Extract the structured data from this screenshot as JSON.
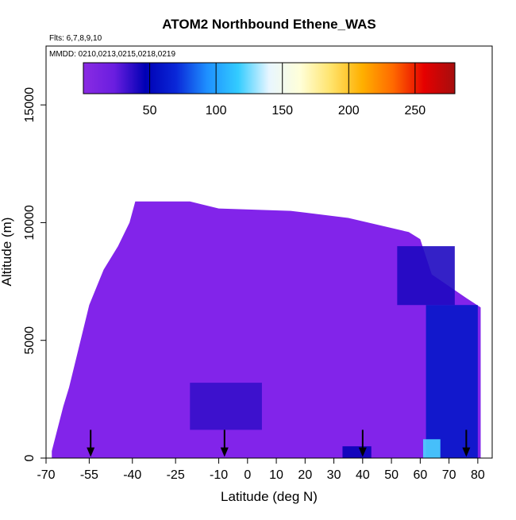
{
  "chart_data": {
    "type": "heatmap",
    "title": "ATOM2 Northbound Ethene_WAS",
    "flights_label": "Flts: 6,7,8,9,10",
    "dates_label": "MMDD: 0210,0213,0215,0218,0219",
    "xlabel": "Latitude (deg N)",
    "ylabel": "Altitude (m)",
    "xlim": [
      -70,
      85
    ],
    "ylim": [
      0,
      17500
    ],
    "xticks": [
      "-70",
      "-55",
      "-40",
      "-25",
      "-10",
      "0",
      "10",
      "20",
      "30",
      "40",
      "50",
      "60",
      "70",
      "80"
    ],
    "xtick_values": [
      -70,
      -55,
      -40,
      -25,
      -10,
      0,
      10,
      20,
      30,
      40,
      50,
      60,
      70,
      80
    ],
    "yticks": [
      "0",
      "5000",
      "10000",
      "15000"
    ],
    "ytick_values": [
      0,
      5000,
      10000,
      15000
    ],
    "colorbar": {
      "range": [
        0,
        280
      ],
      "ticks": [
        "50",
        "100",
        "150",
        "200",
        "250"
      ],
      "tick_values": [
        50,
        100,
        150,
        200,
        250
      ],
      "colors": [
        "#8a2be2",
        "#6a1ee0",
        "#0000b4",
        "#0a28d8",
        "#1e90ff",
        "#33ccff",
        "#e8f6ff",
        "#ffffd9",
        "#ffe36b",
        "#ffb000",
        "#ff6a00",
        "#e60000",
        "#a50e0e"
      ]
    },
    "field": {
      "background_value": 8,
      "background_color": "#8224ea",
      "regions": [
        {
          "name": "upper-troposphere-lat-60-72",
          "lat": [
            52,
            72
          ],
          "alt": [
            6500,
            9000
          ],
          "value": 40
        },
        {
          "name": "tropical-midlevel-minimum",
          "lat": [
            -20,
            5
          ],
          "alt": [
            1200,
            3200
          ],
          "value": 35
        },
        {
          "name": "arctic-lower-troposphere",
          "lat": [
            62,
            80
          ],
          "alt": [
            0,
            6500
          ],
          "value": 60
        },
        {
          "name": "arctic-surface-maximum",
          "lat": [
            61,
            67
          ],
          "alt": [
            0,
            800
          ],
          "value": 120
        },
        {
          "name": "midlatitude-surface-patch",
          "lat": [
            33,
            43
          ],
          "alt": [
            0,
            500
          ],
          "value": 45
        }
      ]
    },
    "vertical_profiles": [
      {
        "lat": -54.5,
        "value": 5
      },
      {
        "lat": -8,
        "value": 5
      },
      {
        "lat": 40,
        "value": 5
      },
      {
        "lat": 76,
        "value": 60
      }
    ]
  }
}
